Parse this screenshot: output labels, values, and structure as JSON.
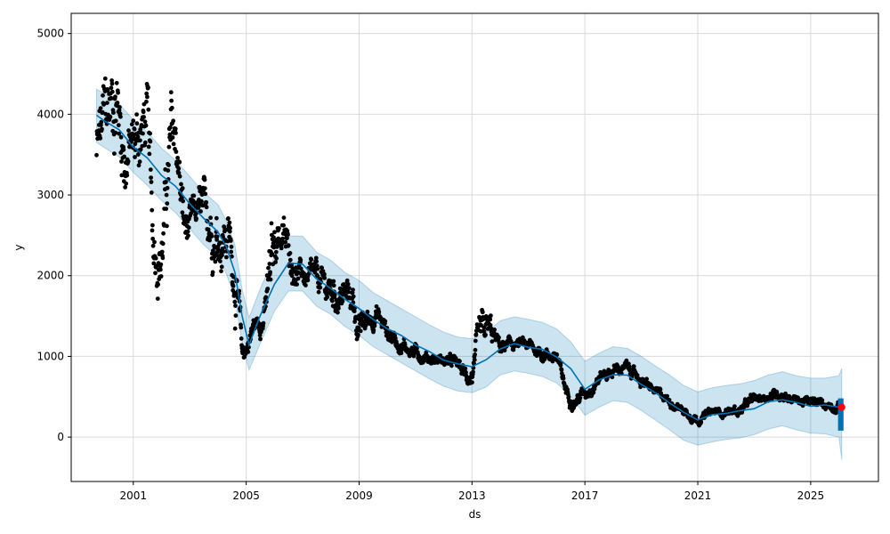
{
  "chart_data": {
    "type": "scatter",
    "title": "",
    "xlabel": "ds",
    "ylabel": "y",
    "xlim": [
      1998.8,
      2027.4
    ],
    "ylim": [
      -550,
      5250
    ],
    "x_ticks": [
      {
        "value": 2001.0,
        "label": "2001"
      },
      {
        "value": 2005.0,
        "label": "2005"
      },
      {
        "value": 2009.0,
        "label": "2009"
      },
      {
        "value": 2013.0,
        "label": "2013"
      },
      {
        "value": 2017.0,
        "label": "2017"
      },
      {
        "value": 2021.0,
        "label": "2021"
      },
      {
        "value": 2025.0,
        "label": "2025"
      }
    ],
    "y_ticks": [
      {
        "value": 0,
        "label": "0"
      },
      {
        "value": 1000,
        "label": "1000"
      },
      {
        "value": 2000,
        "label": "2000"
      },
      {
        "value": 3000,
        "label": "3000"
      },
      {
        "value": 4000,
        "label": "4000"
      },
      {
        "value": 5000,
        "label": "5000"
      }
    ],
    "grid": true,
    "colors": {
      "observed": "#000000",
      "forecast": "#0072b2",
      "interval": "#0072b2",
      "highlight": "#ff0000",
      "grid": "#d9d9d9"
    },
    "forecast": {
      "x": [
        1999.7,
        2000.0,
        2000.5,
        2001.0,
        2001.5,
        2002.0,
        2002.5,
        2003.0,
        2003.5,
        2004.0,
        2004.3,
        2004.6,
        2004.85,
        2005.1,
        2005.5,
        2006.0,
        2006.5,
        2007.0,
        2007.5,
        2008.0,
        2008.5,
        2009.0,
        2009.5,
        2010.0,
        2010.5,
        2011.0,
        2011.5,
        2012.0,
        2012.5,
        2013.0,
        2013.5,
        2014.0,
        2014.5,
        2015.0,
        2015.5,
        2016.0,
        2016.5,
        2017.0,
        2017.5,
        2018.0,
        2018.5,
        2019.0,
        2019.5,
        2020.0,
        2020.5,
        2021.0,
        2021.5,
        2022.0,
        2022.5,
        2023.0,
        2023.5,
        2024.0,
        2024.5,
        2025.0,
        2025.5,
        2026.0,
        2026.1
      ],
      "yhat": [
        3980,
        3920,
        3800,
        3600,
        3450,
        3250,
        3100,
        2900,
        2700,
        2550,
        2350,
        2050,
        1500,
        1150,
        1500,
        1900,
        2150,
        2150,
        1950,
        1850,
        1700,
        1600,
        1450,
        1350,
        1250,
        1150,
        1050,
        960,
        900,
        880,
        950,
        1100,
        1150,
        1120,
        1080,
        1000,
        840,
        600,
        700,
        780,
        760,
        660,
        540,
        430,
        300,
        220,
        270,
        300,
        320,
        360,
        430,
        470,
        420,
        390,
        390,
        380,
        360
      ],
      "yhat_lower": [
        3650,
        3580,
        3470,
        3280,
        3120,
        2930,
        2780,
        2580,
        2380,
        2230,
        2020,
        1720,
        1180,
        830,
        1160,
        1560,
        1810,
        1810,
        1620,
        1520,
        1370,
        1260,
        1120,
        1020,
        920,
        820,
        720,
        630,
        570,
        550,
        620,
        770,
        820,
        790,
        750,
        670,
        510,
        270,
        370,
        450,
        430,
        330,
        210,
        90,
        -40,
        -100,
        -60,
        -30,
        -10,
        30,
        100,
        140,
        90,
        50,
        40,
        0,
        -280
      ],
      "yhat_upper": [
        4310,
        4250,
        4130,
        3930,
        3780,
        3580,
        3430,
        3230,
        3030,
        2880,
        2680,
        2380,
        1840,
        1480,
        1840,
        2240,
        2490,
        2490,
        2290,
        2190,
        2040,
        1940,
        1790,
        1690,
        1590,
        1490,
        1390,
        1300,
        1240,
        1220,
        1290,
        1440,
        1490,
        1460,
        1420,
        1340,
        1180,
        940,
        1040,
        1120,
        1100,
        1000,
        880,
        770,
        640,
        560,
        610,
        640,
        660,
        700,
        770,
        810,
        760,
        730,
        730,
        760,
        850
      ]
    },
    "observed_anchors": {
      "x": [
        1999.7,
        2000.0,
        2000.4,
        2000.7,
        2001.0,
        2001.3,
        2001.5,
        2001.7,
        2002.0,
        2002.3,
        2002.5,
        2002.8,
        2003.0,
        2003.3,
        2003.6,
        2004.0,
        2004.4,
        2004.7,
        2004.85,
        2005.0,
        2005.3,
        2005.6,
        2005.9,
        2006.1,
        2006.4,
        2006.7,
        2007.0,
        2007.5,
        2008.0,
        2008.5,
        2008.8,
        2009.0,
        2009.3,
        2009.6,
        2010.0,
        2010.5,
        2011.0,
        2011.5,
        2012.0,
        2012.5,
        2012.8,
        2013.0,
        2013.3,
        2013.6,
        2014.0,
        2014.5,
        2015.0,
        2015.5,
        2016.0,
        2016.3,
        2016.6,
        2017.0,
        2017.5,
        2018.0,
        2018.5,
        2019.0,
        2019.5,
        2020.0,
        2020.5,
        2021.0,
        2021.5,
        2022.0,
        2022.5,
        2023.0,
        2023.5,
        2024.0,
        2024.5,
        2025.0,
        2025.5,
        2026.1
      ],
      "y": [
        3500,
        3900,
        4300,
        3500,
        3600,
        3800,
        3900,
        2400,
        2300,
        3500,
        3700,
        2600,
        2500,
        2800,
        2700,
        2600,
        2500,
        1700,
        1000,
        1100,
        1400,
        1450,
        2000,
        2600,
        2400,
        2100,
        2000,
        1900,
        1800,
        1750,
        1700,
        1300,
        1450,
        1550,
        1300,
        1150,
        1050,
        980,
        950,
        900,
        740,
        780,
        1100,
        1300,
        1100,
        1150,
        1120,
        1050,
        1000,
        600,
        450,
        550,
        750,
        830,
        860,
        700,
        550,
        450,
        330,
        230,
        300,
        320,
        330,
        460,
        520,
        540,
        460,
        420,
        410,
        370
      ],
      "spread": [
        420,
        520,
        560,
        450,
        380,
        460,
        480,
        300,
        360,
        520,
        430,
        280,
        260,
        230,
        260,
        420,
        300,
        320,
        160,
        170,
        120,
        110,
        520,
        260,
        220,
        150,
        130,
        170,
        200,
        190,
        170,
        210,
        140,
        120,
        110,
        90,
        80,
        70,
        70,
        70,
        90,
        120,
        260,
        180,
        80,
        70,
        70,
        80,
        80,
        80,
        70,
        80,
        80,
        70,
        60,
        60,
        55,
        50,
        55,
        50,
        50,
        50,
        60,
        60,
        60,
        60,
        55,
        55,
        55,
        55
      ]
    },
    "highlight_point": {
      "x": 2026.1,
      "y": 370
    }
  }
}
